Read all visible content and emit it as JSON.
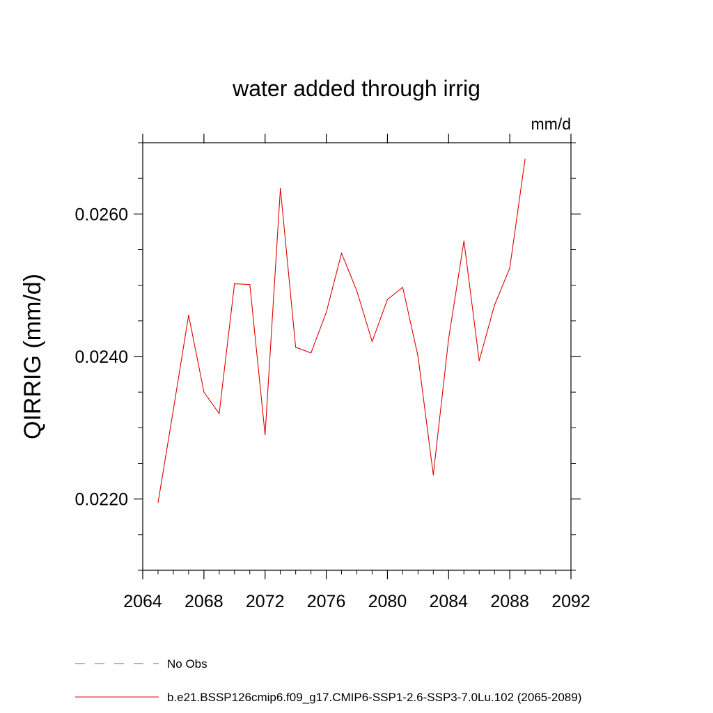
{
  "chart_data": {
    "type": "line",
    "title": "water added through irrig",
    "units_label": "mm/d",
    "ylabel": "QIRRIG  (mm/d)",
    "xlabel": "",
    "xlim": [
      2064,
      2092
    ],
    "ylim": [
      0.021,
      0.027
    ],
    "x_ticks": [
      2064,
      2068,
      2072,
      2076,
      2080,
      2084,
      2088,
      2092
    ],
    "x_tick_labels": [
      "2064",
      "2068",
      "2072",
      "2076",
      "2080",
      "2084",
      "2088",
      "2092"
    ],
    "y_major_ticks": [
      0.022,
      0.024,
      0.026
    ],
    "y_tick_labels": [
      "0.0220",
      "0.0240",
      "0.0260"
    ],
    "y_minor_ticks": [
      0.021,
      0.0215,
      0.0225,
      0.023,
      0.0235,
      0.0245,
      0.025,
      0.0255,
      0.0265,
      0.027
    ],
    "x_minor_ticks": [
      2065,
      2066,
      2067,
      2069,
      2070,
      2071,
      2073,
      2074,
      2075,
      2077,
      2078,
      2079,
      2081,
      2082,
      2083,
      2085,
      2086,
      2087,
      2089,
      2090,
      2091
    ],
    "grid": false,
    "series": [
      {
        "name": "b.e21.BSSP126cmip6.f09_g17.CMIP6-SSP1-2.6-SSP3-7.0Lu.102 (2065-2089)",
        "color": "#e00000",
        "x": [
          2065,
          2066,
          2067,
          2068,
          2069,
          2070,
          2071,
          2072,
          2073,
          2074,
          2075,
          2076,
          2077,
          2078,
          2079,
          2080,
          2081,
          2082,
          2083,
          2084,
          2085,
          2086,
          2087,
          2088,
          2089
        ],
        "values": [
          0.02195,
          0.02325,
          0.02458,
          0.0235,
          0.0232,
          0.02502,
          0.02501,
          0.0229,
          0.02636,
          0.02413,
          0.02405,
          0.02462,
          0.02545,
          0.02492,
          0.02421,
          0.0248,
          0.02497,
          0.024,
          0.02234,
          0.02425,
          0.02562,
          0.02394,
          0.02472,
          0.02524,
          0.02677
        ]
      }
    ],
    "legend": [
      {
        "label": "No Obs",
        "style": "dashed",
        "color": "#6a5acd"
      },
      {
        "label": "b.e21.BSSP126cmip6.f09_g17.CMIP6-SSP1-2.6-SSP3-7.0Lu.102 (2065-2089)",
        "style": "solid",
        "color": "#e00000"
      }
    ],
    "legend_position": "bottom"
  }
}
